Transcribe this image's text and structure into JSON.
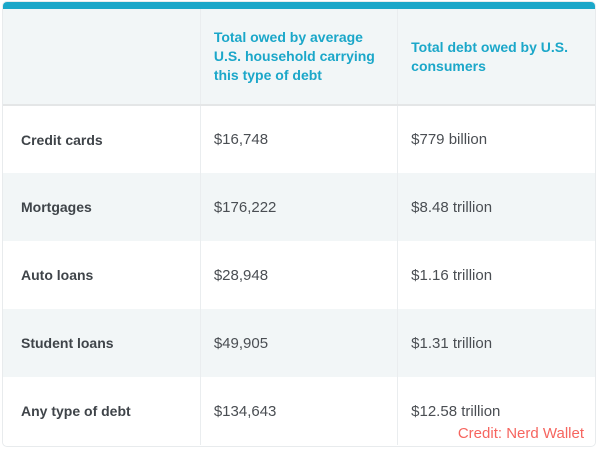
{
  "chart_data": {
    "type": "table",
    "title": "",
    "columns": [
      "",
      "Total owed by average U.S. household carrying this type of debt",
      "Total debt owed by U.S. consumers"
    ],
    "rows": [
      [
        "Credit cards",
        "$16,748",
        "$779 billion"
      ],
      [
        "Mortgages",
        "$176,222",
        "$8.48 trillion"
      ],
      [
        "Auto loans",
        "$28,948",
        "$1.16 trillion"
      ],
      [
        "Student loans",
        "$49,905",
        "$1.31 trillion"
      ],
      [
        "Any type of debt",
        "$134,643",
        "$12.58 trillion"
      ]
    ],
    "credit": "Credit: Nerd Wallet"
  },
  "colors": {
    "accent_teal": "#1ba7c9",
    "row_stripe": "#f2f6f7",
    "label_text": "#3f4449",
    "value_text": "#4a4e53",
    "credit_red": "#f6655f",
    "border": "#e8ebed"
  }
}
